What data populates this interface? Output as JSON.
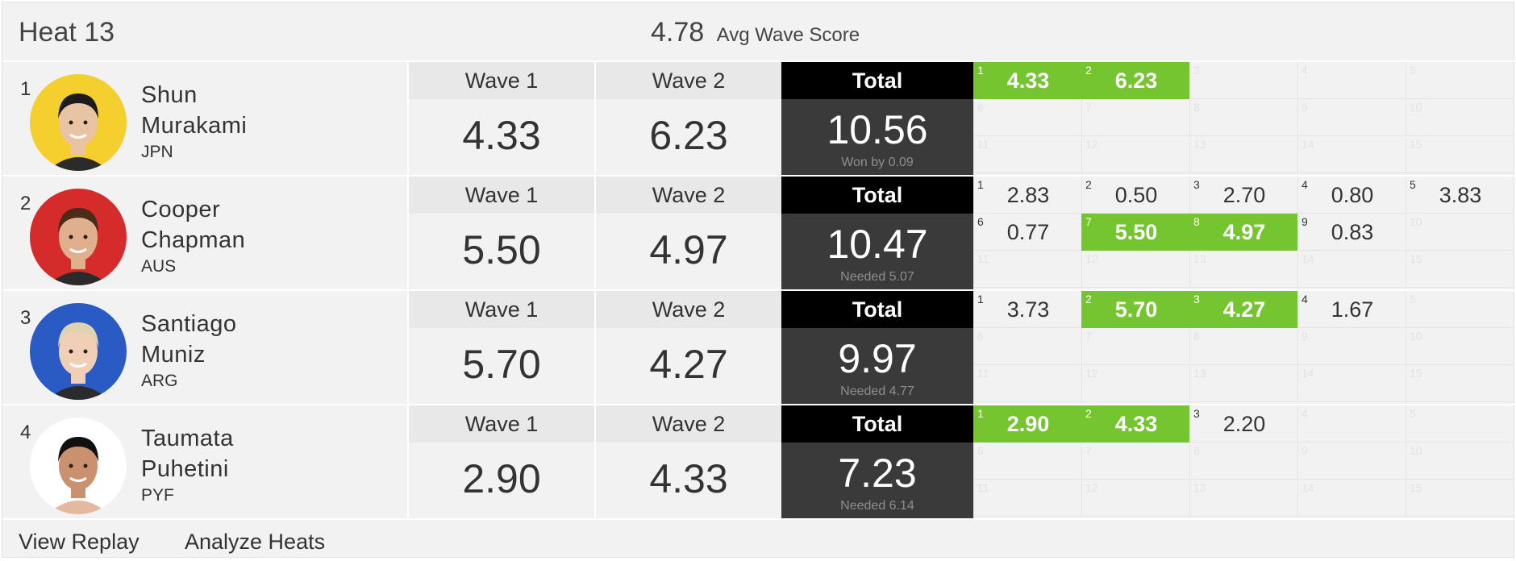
{
  "heat": {
    "title": "Heat 13",
    "avg_value": "4.78",
    "avg_label": "Avg Wave Score"
  },
  "labels": {
    "wave1": "Wave 1",
    "wave2": "Wave 2",
    "total": "Total"
  },
  "competitors": [
    {
      "rank": "1",
      "first": "Shun",
      "last": "Murakami",
      "country": "JPN",
      "avatar_color": "#f4cf2e",
      "wave1": "4.33",
      "wave2": "6.23",
      "total": "10.56",
      "status": "Won by 0.09",
      "waves": [
        {
          "n": "1",
          "s": "4.33",
          "c": true
        },
        {
          "n": "2",
          "s": "6.23",
          "c": true
        },
        {
          "n": "3",
          "s": ""
        },
        {
          "n": "4",
          "s": ""
        },
        {
          "n": "5",
          "s": ""
        },
        {
          "n": "6",
          "s": ""
        },
        {
          "n": "7",
          "s": ""
        },
        {
          "n": "8",
          "s": ""
        },
        {
          "n": "9",
          "s": ""
        },
        {
          "n": "10",
          "s": ""
        },
        {
          "n": "11",
          "s": ""
        },
        {
          "n": "12",
          "s": ""
        },
        {
          "n": "13",
          "s": ""
        },
        {
          "n": "14",
          "s": ""
        },
        {
          "n": "15",
          "s": ""
        }
      ]
    },
    {
      "rank": "2",
      "first": "Cooper",
      "last": "Chapman",
      "country": "AUS",
      "avatar_color": "#d62b2b",
      "wave1": "5.50",
      "wave2": "4.97",
      "total": "10.47",
      "status": "Needed 5.07",
      "waves": [
        {
          "n": "1",
          "s": "2.83"
        },
        {
          "n": "2",
          "s": "0.50"
        },
        {
          "n": "3",
          "s": "2.70"
        },
        {
          "n": "4",
          "s": "0.80"
        },
        {
          "n": "5",
          "s": "3.83"
        },
        {
          "n": "6",
          "s": "0.77"
        },
        {
          "n": "7",
          "s": "5.50",
          "c": true
        },
        {
          "n": "8",
          "s": "4.97",
          "c": true
        },
        {
          "n": "9",
          "s": "0.83"
        },
        {
          "n": "10",
          "s": ""
        },
        {
          "n": "11",
          "s": ""
        },
        {
          "n": "12",
          "s": ""
        },
        {
          "n": "13",
          "s": ""
        },
        {
          "n": "14",
          "s": ""
        },
        {
          "n": "15",
          "s": ""
        }
      ]
    },
    {
      "rank": "3",
      "first": "Santiago",
      "last": "Muniz",
      "country": "ARG",
      "avatar_color": "#2a5bc4",
      "wave1": "5.70",
      "wave2": "4.27",
      "total": "9.97",
      "status": "Needed 4.77",
      "waves": [
        {
          "n": "1",
          "s": "3.73"
        },
        {
          "n": "2",
          "s": "5.70",
          "c": true
        },
        {
          "n": "3",
          "s": "4.27",
          "c": true
        },
        {
          "n": "4",
          "s": "1.67"
        },
        {
          "n": "5",
          "s": ""
        },
        {
          "n": "6",
          "s": ""
        },
        {
          "n": "7",
          "s": ""
        },
        {
          "n": "8",
          "s": ""
        },
        {
          "n": "9",
          "s": ""
        },
        {
          "n": "10",
          "s": ""
        },
        {
          "n": "11",
          "s": ""
        },
        {
          "n": "12",
          "s": ""
        },
        {
          "n": "13",
          "s": ""
        },
        {
          "n": "14",
          "s": ""
        },
        {
          "n": "15",
          "s": ""
        }
      ]
    },
    {
      "rank": "4",
      "first": "Taumata",
      "last": "Puhetini",
      "country": "PYF",
      "avatar_color": "#ffffff",
      "wave1": "2.90",
      "wave2": "4.33",
      "total": "7.23",
      "status": "Needed 6.14",
      "waves": [
        {
          "n": "1",
          "s": "2.90",
          "c": true
        },
        {
          "n": "2",
          "s": "4.33",
          "c": true
        },
        {
          "n": "3",
          "s": "2.20"
        },
        {
          "n": "4",
          "s": ""
        },
        {
          "n": "5",
          "s": ""
        },
        {
          "n": "6",
          "s": ""
        },
        {
          "n": "7",
          "s": ""
        },
        {
          "n": "8",
          "s": ""
        },
        {
          "n": "9",
          "s": ""
        },
        {
          "n": "10",
          "s": ""
        },
        {
          "n": "11",
          "s": ""
        },
        {
          "n": "12",
          "s": ""
        },
        {
          "n": "13",
          "s": ""
        },
        {
          "n": "14",
          "s": ""
        },
        {
          "n": "15",
          "s": ""
        }
      ]
    }
  ],
  "footer": {
    "replay": "View Replay",
    "analyze": "Analyze Heats"
  },
  "colors": {
    "counted": "#74c52f",
    "total_header": "#000000",
    "total_box": "#3a3a3a"
  }
}
